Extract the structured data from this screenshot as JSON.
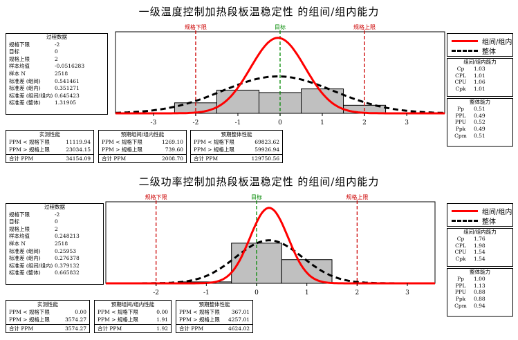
{
  "panels": [
    {
      "title": "一级温度控制加热段板温稳定性 的组间/组内能力",
      "process": {
        "header": "过程数据",
        "rows": [
          {
            "label": "规格下限",
            "value": "-2"
          },
          {
            "label": "目标",
            "value": "0"
          },
          {
            "label": "规格上限",
            "value": "2"
          },
          {
            "label": "样本均值",
            "value": "-0.0516283"
          },
          {
            "label": "样本 N",
            "value": "2518"
          },
          {
            "label": "标准差 (组间)",
            "value": "0.541461"
          },
          {
            "label": "标准差 (组内)",
            "value": "0.351271"
          },
          {
            "label": "标准差 (组间/组内)",
            "value": "0.645423"
          },
          {
            "label": "标准差 (整体)",
            "value": "1.31905"
          }
        ]
      },
      "observed": {
        "header": "实测性能",
        "rows": [
          {
            "label": "PPM < 规格下限",
            "value": "11119.94"
          },
          {
            "label": "PPM > 规格上限",
            "value": "23034.15"
          },
          {
            "label": "合计 PPM",
            "value": "34154.09"
          }
        ]
      },
      "expected_within": {
        "header": "预期组间/组内性能",
        "rows": [
          {
            "label": "PPM < 规格下限",
            "value": "1269.10"
          },
          {
            "label": "PPM > 规格上限",
            "value": "739.60"
          },
          {
            "label": "合计 PPM",
            "value": "2008.70"
          }
        ]
      },
      "expected_overall": {
        "header": "预期整体性能",
        "rows": [
          {
            "label": "PPM < 规格下限",
            "value": "69823.62"
          },
          {
            "label": "PPM > 规格上限",
            "value": "59926.94"
          },
          {
            "label": "合计 PPM",
            "value": "129750.56"
          }
        ]
      },
      "legend": {
        "within": "组间/组内",
        "overall": "整体"
      },
      "cap_within": {
        "header": "组间/组内能力",
        "rows": [
          {
            "label": "Cp",
            "value": "1.03"
          },
          {
            "label": "CPL",
            "value": "1.01"
          },
          {
            "label": "CPU",
            "value": "1.06"
          },
          {
            "label": "Cpk",
            "value": "1.01"
          }
        ]
      },
      "cap_overall": {
        "header": "整体能力",
        "rows": [
          {
            "label": "Pp",
            "value": "0.51"
          },
          {
            "label": "PPL",
            "value": "0.49"
          },
          {
            "label": "PPU",
            "value": "0.52"
          },
          {
            "label": "Ppk",
            "value": "0.49"
          },
          {
            "label": "Cpm",
            "value": "0.51"
          }
        ]
      }
    },
    {
      "title": "二级功率控制加热段板温稳定性 的组间/组内能力",
      "process": {
        "header": "过程数据",
        "rows": [
          {
            "label": "规格下限",
            "value": "-2"
          },
          {
            "label": "目标",
            "value": "0"
          },
          {
            "label": "规格上限",
            "value": "2"
          },
          {
            "label": "样本均值",
            "value": "0.248213"
          },
          {
            "label": "样本 N",
            "value": "2518"
          },
          {
            "label": "标准差 (组间)",
            "value": "0.25953"
          },
          {
            "label": "标准差 (组内)",
            "value": "0.276378"
          },
          {
            "label": "标准差 (组间/组内)",
            "value": "0.379132"
          },
          {
            "label": "标准差 (整体)",
            "value": "0.665832"
          }
        ]
      },
      "observed": {
        "header": "实测性能",
        "rows": [
          {
            "label": "PPM < 规格下限",
            "value": "0.00"
          },
          {
            "label": "PPM > 规格上限",
            "value": "3574.27"
          },
          {
            "label": "合计 PPM",
            "value": "3574.27"
          }
        ]
      },
      "expected_within": {
        "header": "预期组间/组内性能",
        "rows": [
          {
            "label": "PPM < 规格下限",
            "value": "0.00"
          },
          {
            "label": "PPM > 规格上限",
            "value": "1.91"
          },
          {
            "label": "合计 PPM",
            "value": "1.92"
          }
        ]
      },
      "expected_overall": {
        "header": "预期整体性能",
        "rows": [
          {
            "label": "PPM < 规格下限",
            "value": "367.01"
          },
          {
            "label": "PPM > 规格上限",
            "value": "4257.01"
          },
          {
            "label": "合计 PPM",
            "value": "4624.02"
          }
        ]
      },
      "legend": {
        "within": "组间/组内",
        "overall": "整体"
      },
      "cap_within": {
        "header": "组间/组内能力",
        "rows": [
          {
            "label": "Cp",
            "value": "1.76"
          },
          {
            "label": "CPL",
            "value": "1.98"
          },
          {
            "label": "CPU",
            "value": "1.54"
          },
          {
            "label": "Cpk",
            "value": "1.54"
          }
        ]
      },
      "cap_overall": {
        "header": "整体能力",
        "rows": [
          {
            "label": "Pp",
            "value": "1.00"
          },
          {
            "label": "PPL",
            "value": "1.13"
          },
          {
            "label": "PPU",
            "value": "0.88"
          },
          {
            "label": "Ppk",
            "value": "0.88"
          },
          {
            "label": "Cpm",
            "value": "0.94"
          }
        ]
      }
    }
  ],
  "chart_data": [
    {
      "type": "bar",
      "title": "一级温度控制加热段板温稳定性 的组间/组内能力",
      "xlim": [
        -3.9,
        3.9
      ],
      "xticks": [
        -3,
        -2,
        -1,
        0,
        1,
        2,
        3
      ],
      "spec_labels": {
        "lsl": "规格下限",
        "target": "目标",
        "usl": "规格上限"
      },
      "lsl": -2,
      "target": 0,
      "usl": 2,
      "bins": [
        {
          "start": -2.5,
          "end": -1.5,
          "density": 0.086
        },
        {
          "start": -1.5,
          "end": -0.5,
          "density": 0.19
        },
        {
          "start": -0.5,
          "end": 0.5,
          "density": 0.17
        },
        {
          "start": 0.5,
          "end": 1.5,
          "density": 0.2
        },
        {
          "start": 1.5,
          "end": 2.5,
          "density": 0.066
        }
      ],
      "mean": -0.0516283,
      "sd_within": 0.645423,
      "sd_overall": 1.31905,
      "series": [
        {
          "name": "组间/组内",
          "color": "#ff0000",
          "style": "solid"
        },
        {
          "name": "整体",
          "color": "#000000",
          "style": "dashed"
        }
      ],
      "colors": {
        "lsl": "#cc0000",
        "target": "#008800",
        "bars": "#c0c0c0"
      }
    },
    {
      "type": "bar",
      "title": "二级功率控制加热段板温稳定性 的组间/组内能力",
      "xlim": [
        -3.0,
        3.55
      ],
      "xticks": [
        -2,
        -1,
        0,
        1,
        2,
        3
      ],
      "spec_labels": {
        "lsl": "规格下限",
        "target": "目标",
        "usl": "规格上限"
      },
      "lsl": -2,
      "target": 0,
      "usl": 2,
      "bins": [
        {
          "start": -1.5,
          "end": -0.5,
          "density": 0.02
        },
        {
          "start": -0.5,
          "end": 0.5,
          "density": 0.56
        },
        {
          "start": 0.5,
          "end": 1.5,
          "density": 0.33
        }
      ],
      "mean": 0.248213,
      "sd_within": 0.379132,
      "sd_overall": 0.665832,
      "series": [
        {
          "name": "组间/组内",
          "color": "#ff0000",
          "style": "solid"
        },
        {
          "name": "整体",
          "color": "#000000",
          "style": "dashed"
        }
      ],
      "colors": {
        "lsl": "#cc0000",
        "target": "#008800",
        "bars": "#c0c0c0"
      }
    }
  ]
}
